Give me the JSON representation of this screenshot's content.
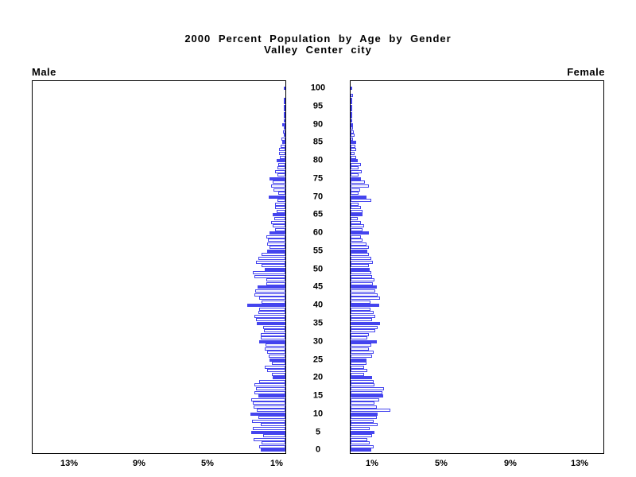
{
  "title": {
    "line1": "2000 Percent Population by Age by Gender",
    "line2": "Valley Center city"
  },
  "panel_labels": {
    "left": "Male",
    "right": "Female"
  },
  "colors": {
    "bar_blue": "#4444ee",
    "frame": "#000000",
    "background": "#ffffff",
    "text": "#000000"
  },
  "chart_data": {
    "type": "bar",
    "variant": "population_pyramid",
    "title": "2000 Percent Population by Age by Gender",
    "subtitle": "Valley Center city",
    "unit": "percent of population",
    "age_min": 0,
    "age_max": 100,
    "age_step": 1,
    "age_axis_labels": [
      0,
      5,
      10,
      15,
      20,
      25,
      30,
      35,
      40,
      45,
      50,
      55,
      60,
      65,
      70,
      75,
      80,
      85,
      90,
      95,
      100
    ],
    "male_pct_axis_labels": [
      "13%",
      "9%",
      "5%",
      "1%"
    ],
    "female_pct_axis_labels": [
      "1%",
      "5%",
      "9%",
      "13%"
    ],
    "pct_axis_max": 15,
    "grid": false,
    "legend": false,
    "highlight_rule": "bars at ages divisible by 5 are solid blue; all other ages are white with blue outline",
    "series": [
      {
        "name": "Male",
        "side": "left",
        "values": [
          1.45,
          1.5,
          1.4,
          1.85,
          1.3,
          2.0,
          1.9,
          1.45,
          1.95,
          1.55,
          2.05,
          1.65,
          1.85,
          1.9,
          2.0,
          1.55,
          1.8,
          1.7,
          1.8,
          1.5,
          0.75,
          0.8,
          1.05,
          1.2,
          0.8,
          0.9,
          0.95,
          1.05,
          1.2,
          1.15,
          1.5,
          1.45,
          1.45,
          1.25,
          1.3,
          1.65,
          1.7,
          1.8,
          1.55,
          1.5,
          2.2,
          1.4,
          1.5,
          1.8,
          1.75,
          1.6,
          1.1,
          1.1,
          1.8,
          1.9,
          1.2,
          1.4,
          1.7,
          1.55,
          1.4,
          1.05,
          0.9,
          1.05,
          1.0,
          1.1,
          0.9,
          0.6,
          0.75,
          0.85,
          0.65,
          0.75,
          0.5,
          0.6,
          0.6,
          0.45,
          0.95,
          0.4,
          0.7,
          0.85,
          0.75,
          0.9,
          0.45,
          0.6,
          0.45,
          0.4,
          0.5,
          0.3,
          0.37,
          0.37,
          0.28,
          0.2,
          0.25,
          0.1,
          0.15,
          0.1,
          0.18,
          0.05,
          0.06,
          0.09,
          0.05,
          0.05,
          0.04,
          0.03,
          0,
          0,
          0.02
        ]
      },
      {
        "name": "Female",
        "side": "right",
        "values": [
          1.2,
          1.35,
          1.1,
          0.95,
          1.25,
          1.4,
          1.1,
          1.55,
          1.35,
          1.5,
          1.55,
          2.3,
          1.5,
          1.4,
          1.65,
          1.9,
          1.85,
          1.95,
          1.4,
          1.35,
          1.25,
          0.8,
          0.95,
          0.8,
          0.9,
          0.9,
          1.25,
          1.35,
          1.05,
          1.2,
          1.5,
          0.95,
          1.05,
          1.45,
          1.55,
          1.7,
          1.25,
          1.45,
          1.35,
          1.15,
          1.65,
          1.15,
          1.7,
          1.55,
          1.45,
          1.5,
          1.3,
          1.4,
          1.25,
          1.2,
          1.1,
          1.05,
          1.3,
          1.2,
          1.05,
          0.95,
          1.05,
          0.9,
          0.7,
          0.6,
          1.05,
          0.7,
          0.8,
          0.6,
          0.4,
          0.7,
          0.7,
          0.6,
          0.45,
          1.2,
          0.9,
          0.45,
          0.55,
          1.05,
          0.85,
          0.6,
          0.45,
          0.65,
          0.45,
          0.6,
          0.43,
          0.3,
          0.25,
          0.3,
          0.28,
          0.3,
          0.15,
          0.22,
          0.18,
          0.15,
          0.12,
          0.1,
          0.04,
          0.05,
          0.03,
          0.04,
          0.04,
          0.05,
          0.12,
          0,
          0.03
        ]
      }
    ]
  }
}
